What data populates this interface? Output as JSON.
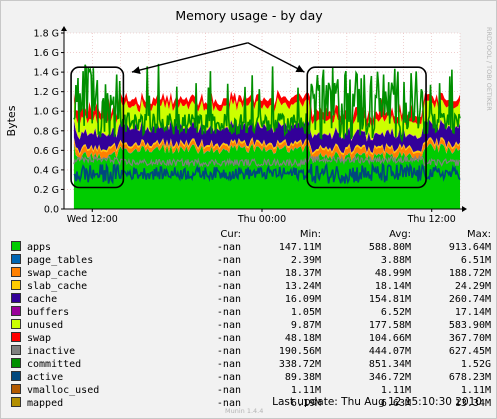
{
  "chart_data": {
    "type": "area",
    "title": "Memory usage - by day",
    "ylabel": "Bytes",
    "ylim": [
      0,
      1800000000
    ],
    "yticks": [
      {
        "value": 0,
        "label": "0.0"
      },
      {
        "value": 200000000,
        "label": "0.2 G"
      },
      {
        "value": 400000000,
        "label": "0.4 G"
      },
      {
        "value": 600000000,
        "label": "0.6 G"
      },
      {
        "value": 800000000,
        "label": "0.8 G"
      },
      {
        "value": 1000000000,
        "label": "1.0 G"
      },
      {
        "value": 1200000000,
        "label": "1.2 G"
      },
      {
        "value": 1400000000,
        "label": "1.4 G"
      },
      {
        "value": 1600000000,
        "label": "1.6 G"
      },
      {
        "value": 1800000000,
        "label": "1.8 G"
      }
    ],
    "xticks": [
      {
        "hours": 0,
        "label": "Wed 12:00"
      },
      {
        "hours": 12,
        "label": "Thu 00:00"
      },
      {
        "hours": 24,
        "label": "Thu 12:00"
      }
    ],
    "x_range_hours": [
      -2,
      26
    ],
    "grid": true,
    "side_label": "RRDTOOL / TOBI OETIKER",
    "legend_headers": [
      "Cur:",
      "Min:",
      "Avg:",
      "Max:"
    ],
    "series": [
      {
        "name": "apps",
        "color": "#00cc00",
        "cur": "-nan",
        "min": "147.11M",
        "avg": "588.80M",
        "max": "913.64M"
      },
      {
        "name": "page_tables",
        "color": "#0066b3",
        "cur": "-nan",
        "min": "2.39M",
        "avg": "3.88M",
        "max": "6.51M"
      },
      {
        "name": "swap_cache",
        "color": "#ff8000",
        "cur": "-nan",
        "min": "18.37M",
        "avg": "48.99M",
        "max": "188.72M"
      },
      {
        "name": "slab_cache",
        "color": "#ffcc00",
        "cur": "-nan",
        "min": "13.24M",
        "avg": "18.14M",
        "max": "24.29M"
      },
      {
        "name": "cache",
        "color": "#330099",
        "cur": "-nan",
        "min": "16.09M",
        "avg": "154.81M",
        "max": "260.74M"
      },
      {
        "name": "buffers",
        "color": "#990099",
        "cur": "-nan",
        "min": "1.05M",
        "avg": "6.52M",
        "max": "17.14M"
      },
      {
        "name": "unused",
        "color": "#ccff00",
        "cur": "-nan",
        "min": "9.87M",
        "avg": "177.58M",
        "max": "583.90M"
      },
      {
        "name": "swap",
        "color": "#ff0000",
        "cur": "-nan",
        "min": "48.18M",
        "avg": "104.66M",
        "max": "367.70M"
      },
      {
        "name": "inactive",
        "color": "#808080",
        "cur": "-nan",
        "min": "190.56M",
        "avg": "444.07M",
        "max": "627.45M"
      },
      {
        "name": "committed",
        "color": "#008f00",
        "cur": "-nan",
        "min": "338.72M",
        "avg": "851.34M",
        "max": "1.52G"
      },
      {
        "name": "active",
        "color": "#00487d",
        "cur": "-nan",
        "min": "89.38M",
        "avg": "346.72M",
        "max": "678.23M"
      },
      {
        "name": "vmalloc_used",
        "color": "#b35a00",
        "cur": "-nan",
        "min": "1.11M",
        "avg": "1.11M",
        "max": "1.11M"
      },
      {
        "name": "mapped",
        "color": "#b38f00",
        "cur": "-nan",
        "min": "6.19M",
        "avg": "6.63M",
        "max": "13.34M"
      }
    ],
    "stack_order": [
      "apps",
      "page_tables",
      "swap_cache",
      "slab_cache",
      "cache",
      "buffers",
      "unused",
      "swap"
    ],
    "line_series": [
      "inactive",
      "committed",
      "active"
    ],
    "annotations": {
      "boxes": [
        {
          "x_hours": [
            -1.5,
            2.2
          ],
          "y": [
            220000000,
            1450000000
          ]
        },
        {
          "x_hours": [
            15.2,
            23.6
          ],
          "y": [
            220000000,
            1450000000
          ]
        }
      ],
      "arrows": {
        "origin": {
          "x_hours": 11,
          "y": 1700000000
        },
        "targets": [
          {
            "x_hours": 2.8,
            "y": 1400000000
          },
          {
            "x_hours": 15.0,
            "y": 1400000000
          }
        ]
      }
    }
  },
  "footer": {
    "last_update": "Last update: Thu Aug 12 15:10:30 2010",
    "generator": "Munin 1.4.4"
  }
}
